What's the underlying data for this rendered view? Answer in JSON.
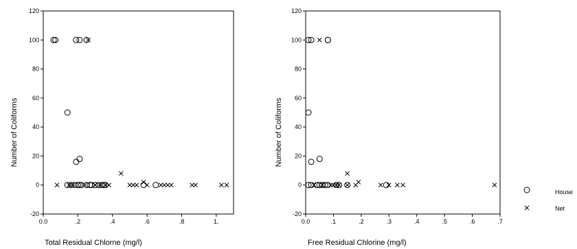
{
  "chart_data": [
    {
      "type": "scatter",
      "xlabel": "Total Residual Chlorne (mg/l)",
      "ylabel": "Number of Coliforms",
      "xlim": [
        0.0,
        1.1
      ],
      "ylim": [
        -20,
        120
      ],
      "xticks": [
        0.0,
        0.2,
        0.4,
        0.6,
        0.8,
        1.0
      ],
      "xtick_labels": [
        "0.0",
        ".2",
        ".4",
        ".6",
        ".8",
        "1."
      ],
      "yticks": [
        -20,
        0,
        20,
        40,
        60,
        80,
        100,
        120
      ],
      "ytick_labels": [
        "-20",
        "0",
        "20",
        "40",
        "60",
        "80",
        "100",
        "120"
      ],
      "grid": false,
      "series": [
        {
          "name": "House",
          "marker": "circle",
          "points": [
            [
              0.06,
              100
            ],
            [
              0.07,
              100
            ],
            [
              0.19,
              100
            ],
            [
              0.21,
              100
            ],
            [
              0.25,
              100
            ],
            [
              0.14,
              50
            ],
            [
              0.21,
              18
            ],
            [
              0.19,
              16
            ],
            [
              0.14,
              0
            ],
            [
              0.16,
              0
            ],
            [
              0.18,
              0
            ],
            [
              0.2,
              0
            ],
            [
              0.21,
              0
            ],
            [
              0.22,
              0
            ],
            [
              0.25,
              0
            ],
            [
              0.27,
              0
            ],
            [
              0.28,
              0
            ],
            [
              0.3,
              0
            ],
            [
              0.32,
              0
            ],
            [
              0.34,
              0
            ],
            [
              0.35,
              0
            ],
            [
              0.36,
              0
            ],
            [
              0.58,
              0
            ],
            [
              0.65,
              0
            ]
          ]
        },
        {
          "name": "Net",
          "marker": "x",
          "points": [
            [
              0.26,
              100
            ],
            [
              0.45,
              8
            ],
            [
              0.58,
              2
            ],
            [
              0.08,
              0
            ],
            [
              0.15,
              0
            ],
            [
              0.17,
              0
            ],
            [
              0.24,
              0
            ],
            [
              0.3,
              0
            ],
            [
              0.33,
              0
            ],
            [
              0.36,
              0
            ],
            [
              0.38,
              0
            ],
            [
              0.5,
              0
            ],
            [
              0.52,
              0
            ],
            [
              0.54,
              0
            ],
            [
              0.6,
              0
            ],
            [
              0.68,
              0
            ],
            [
              0.7,
              0
            ],
            [
              0.72,
              0
            ],
            [
              0.74,
              0
            ],
            [
              0.86,
              0
            ],
            [
              0.88,
              0
            ],
            [
              1.03,
              0
            ],
            [
              1.06,
              0
            ]
          ]
        }
      ]
    },
    {
      "type": "scatter",
      "xlabel": "Free Residual Chlorine (mg/l)",
      "ylabel": "Number of Coliforms",
      "xlim": [
        0.0,
        0.7
      ],
      "ylim": [
        -20,
        120
      ],
      "xticks": [
        0.0,
        0.1,
        0.2,
        0.3,
        0.4,
        0.5,
        0.6,
        0.7
      ],
      "xtick_labels": [
        "0.0",
        ".1",
        ".2",
        ".3",
        ".4",
        ".5",
        ".6",
        ".7"
      ],
      "yticks": [
        -20,
        0,
        20,
        40,
        60,
        80,
        100,
        120
      ],
      "ytick_labels": [
        "-20",
        "0",
        "20",
        "40",
        "60",
        "80",
        "100",
        "120"
      ],
      "grid": false,
      "series": [
        {
          "name": "House",
          "marker": "circle",
          "points": [
            [
              0.01,
              100
            ],
            [
              0.02,
              100
            ],
            [
              0.08,
              100
            ],
            [
              0.08,
              100
            ],
            [
              0.01,
              50
            ],
            [
              0.05,
              18
            ],
            [
              0.02,
              16
            ],
            [
              0.01,
              0
            ],
            [
              0.02,
              0
            ],
            [
              0.04,
              0
            ],
            [
              0.05,
              0
            ],
            [
              0.06,
              0
            ],
            [
              0.07,
              0
            ],
            [
              0.08,
              0
            ],
            [
              0.11,
              0
            ],
            [
              0.12,
              0
            ],
            [
              0.15,
              0
            ],
            [
              0.29,
              0
            ]
          ]
        },
        {
          "name": "Net",
          "marker": "x",
          "points": [
            [
              0.05,
              100
            ],
            [
              0.15,
              8
            ],
            [
              0.19,
              2
            ],
            [
              0.03,
              0
            ],
            [
              0.06,
              0
            ],
            [
              0.09,
              0
            ],
            [
              0.1,
              0
            ],
            [
              0.11,
              0
            ],
            [
              0.12,
              0
            ],
            [
              0.15,
              0
            ],
            [
              0.18,
              0
            ],
            [
              0.27,
              0
            ],
            [
              0.3,
              0
            ],
            [
              0.33,
              0
            ],
            [
              0.35,
              0
            ],
            [
              0.68,
              0
            ]
          ]
        }
      ]
    }
  ],
  "legend": {
    "placement": "right",
    "items": [
      {
        "label": "House",
        "marker": "circle"
      },
      {
        "label": "Net",
        "marker": "x"
      }
    ]
  }
}
